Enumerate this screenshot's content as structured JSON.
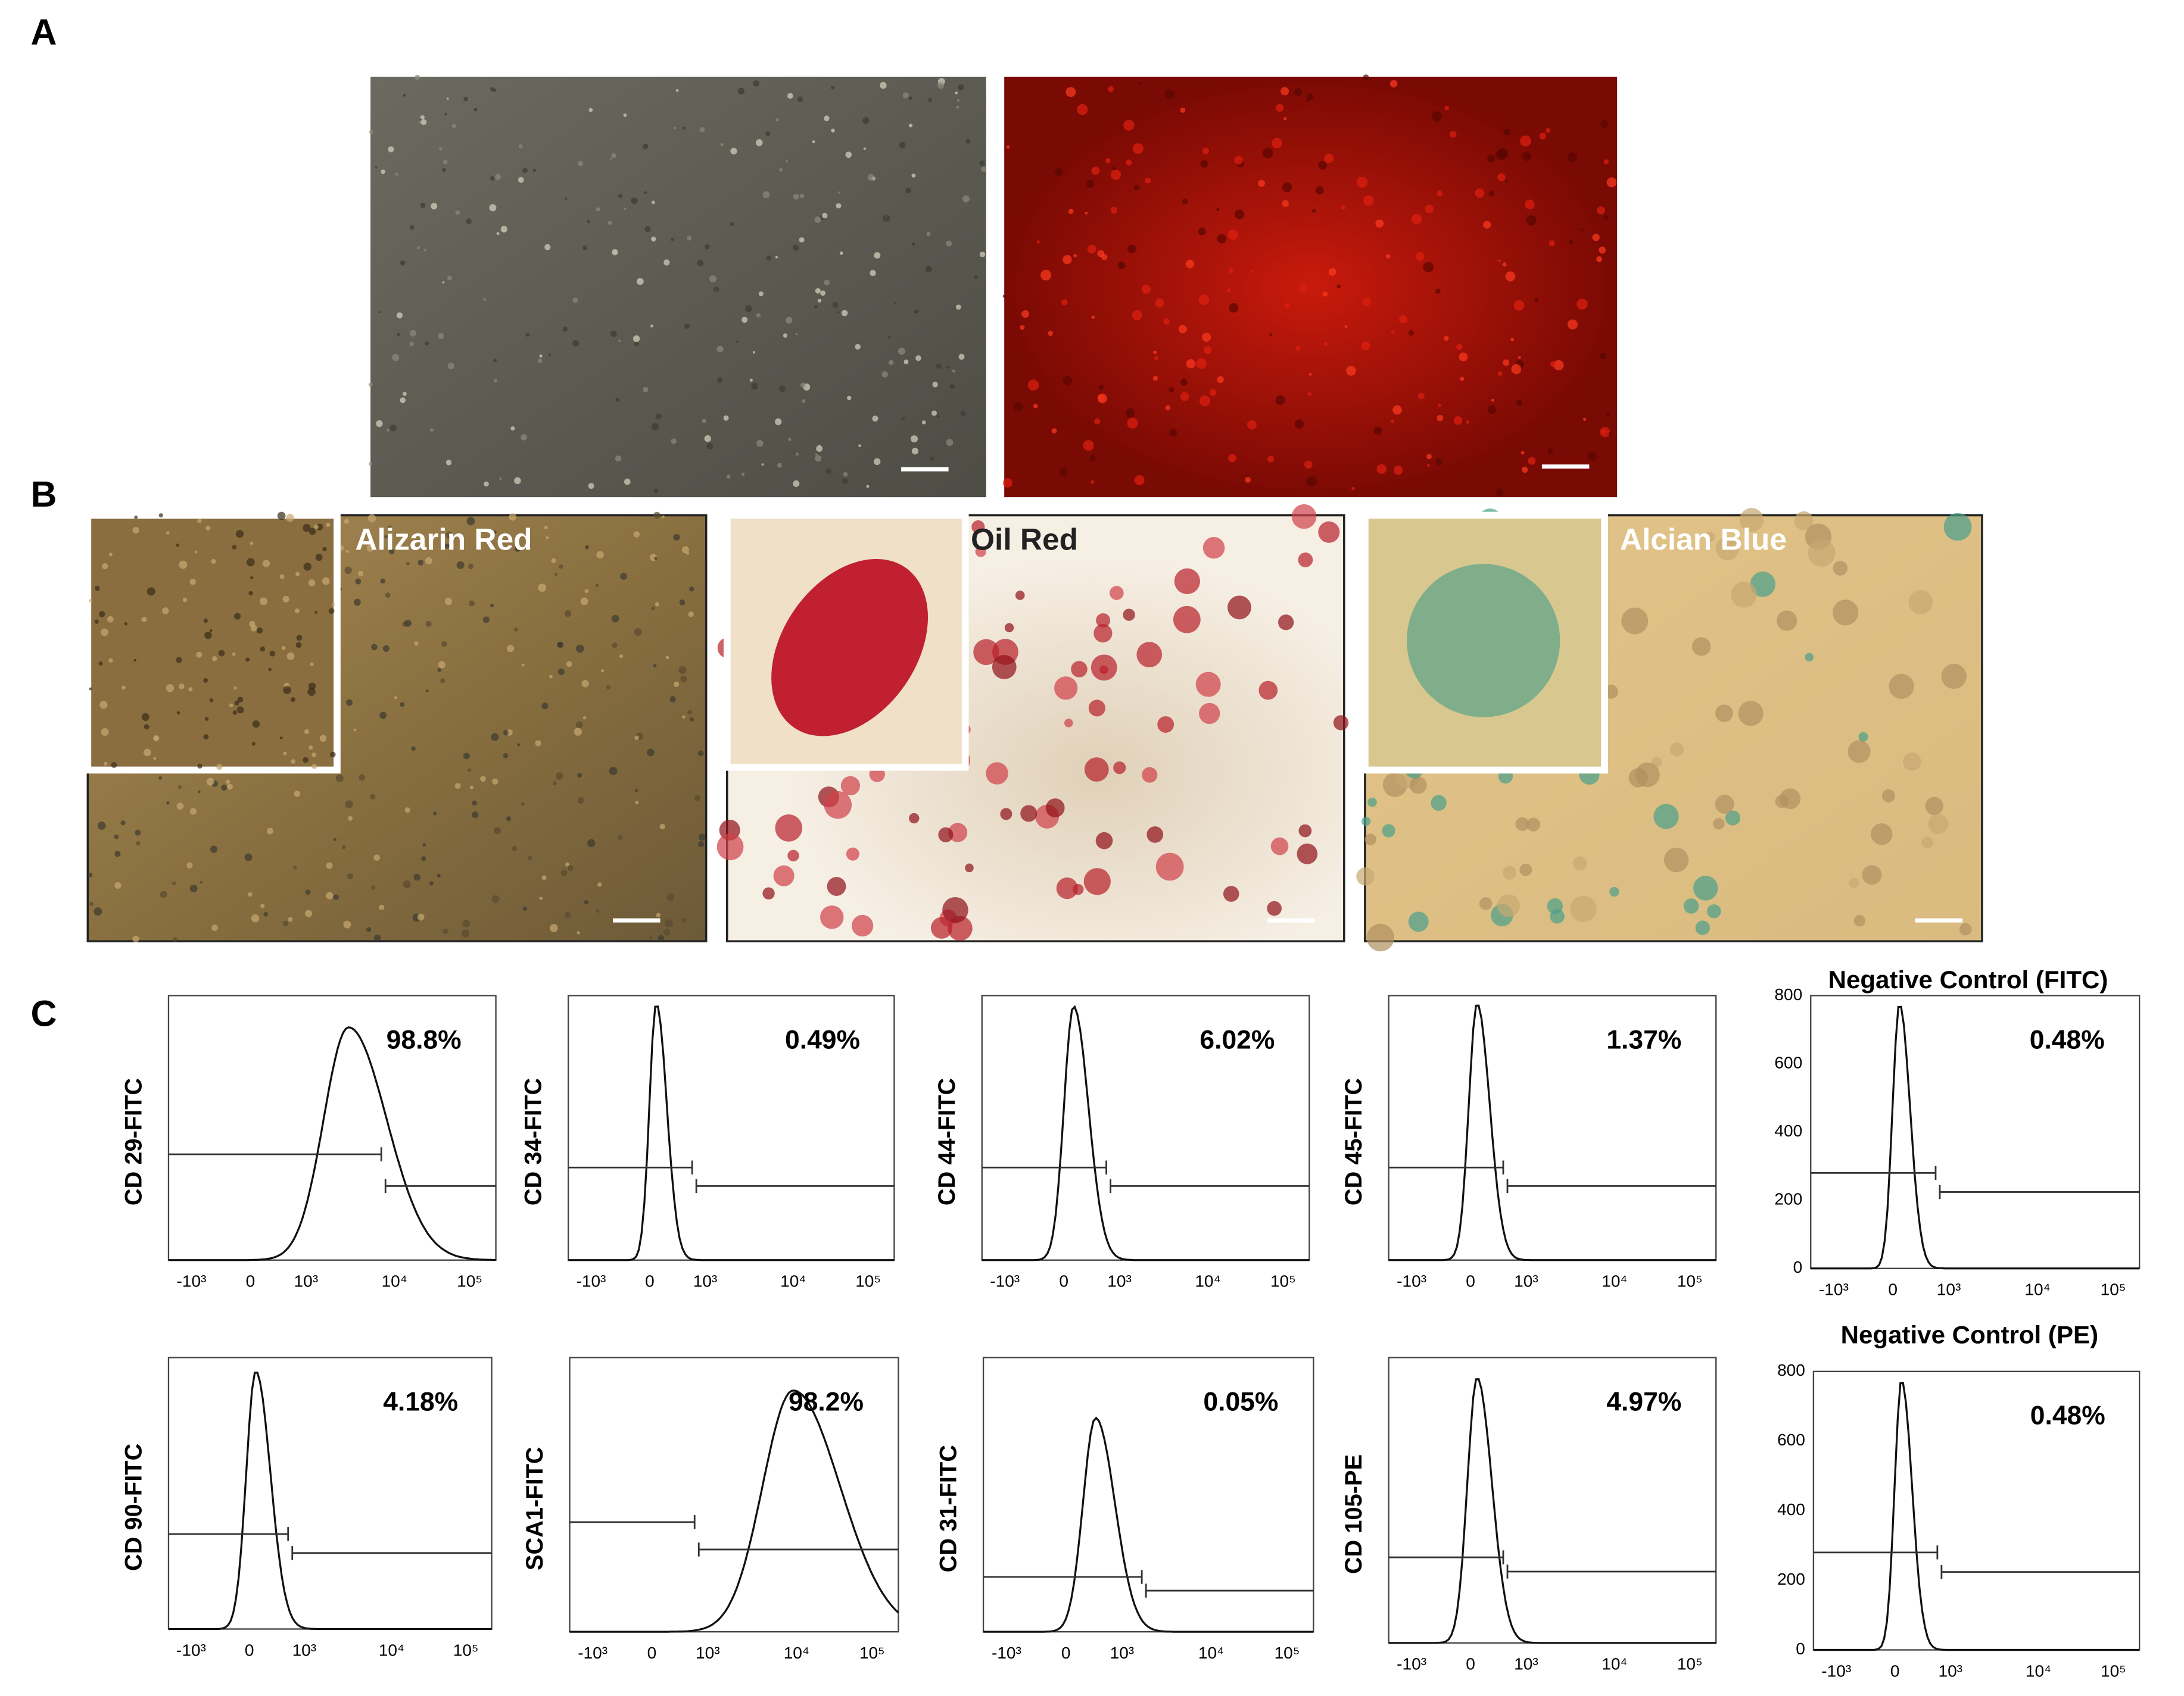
{
  "panels": {
    "a": {
      "label": "A"
    },
    "b": {
      "label": "B",
      "images": [
        {
          "label": "Alizarin Red"
        },
        {
          "label": "Oil Red"
        },
        {
          "label": "Alcian Blue"
        }
      ]
    },
    "c": {
      "label": "C",
      "histograms": [
        {
          "y_label": "CD 29-FITC",
          "percent": "98.8%",
          "x_ticks": [
            "-10³",
            "0",
            "10³",
            "10⁴",
            "10⁵"
          ]
        },
        {
          "y_label": "CD 34-FITC",
          "percent": "0.49%",
          "x_ticks": [
            "-10³",
            "0",
            "10³",
            "10⁴",
            "10⁵"
          ]
        },
        {
          "y_label": "CD 44-FITC",
          "percent": "6.02%",
          "x_ticks": [
            "-10³",
            "0",
            "10³",
            "10⁴",
            "10⁵"
          ]
        },
        {
          "y_label": "CD 45-FITC",
          "percent": "1.37%",
          "x_ticks": [
            "-10³",
            "0",
            "10³",
            "10⁴",
            "10⁵"
          ]
        },
        {
          "title": "Negative Control (FITC)",
          "percent": "0.48%",
          "y_ticks": [
            "800",
            "600",
            "400",
            "200",
            "0"
          ],
          "x_ticks": [
            "-10³",
            "0",
            "10³",
            "10⁴",
            "10⁵"
          ]
        },
        {
          "y_label": "CD 90-FITC",
          "percent": "4.18%",
          "x_ticks": [
            "-10³",
            "0",
            "10³",
            "10⁴",
            "10⁵"
          ]
        },
        {
          "y_label": "SCA1-FITC",
          "percent": "98.2%",
          "x_ticks": [
            "-10³",
            "0",
            "10³",
            "10⁴",
            "10⁵"
          ]
        },
        {
          "y_label": "CD 31-FITC",
          "percent": "0.05%",
          "x_ticks": [
            "-10³",
            "0",
            "10³",
            "10⁴",
            "10⁵"
          ]
        },
        {
          "y_label": "CD 105-PE",
          "percent": "4.97%",
          "x_ticks": [
            "-10³",
            "0",
            "10³",
            "10⁴",
            "10⁵"
          ]
        },
        {
          "title": "Negative Control (PE)",
          "percent": "0.48%",
          "y_ticks": [
            "800",
            "600",
            "400",
            "200",
            "0"
          ],
          "x_ticks": [
            "-10³",
            "0",
            "10³",
            "10⁴",
            "10⁵"
          ]
        }
      ]
    }
  }
}
